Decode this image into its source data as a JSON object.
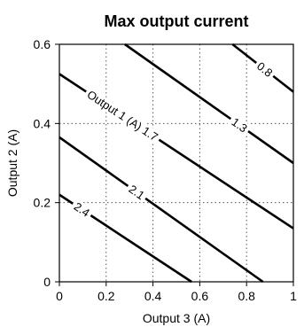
{
  "chart_data": {
    "type": "line",
    "title": "Max output current",
    "xlabel": "Output 3 (A)",
    "ylabel": "Output 2 (A)",
    "xlim": [
      0,
      1
    ],
    "ylim": [
      0,
      0.6
    ],
    "xticks": [
      0,
      0.2,
      0.4,
      0.6,
      0.8,
      1
    ],
    "yticks": [
      0,
      0.2,
      0.4,
      0.6
    ],
    "xtick_labels": [
      "0",
      "0.2",
      "0.4",
      "0.6",
      "0.8",
      "1"
    ],
    "ytick_labels": [
      "0",
      "0.2",
      "0.4",
      "0.6"
    ],
    "grid": true,
    "contour_variable": "Output 1 (A)",
    "series": [
      {
        "name": "0.8",
        "label": "0.8",
        "x": [
          0.74,
          1.0
        ],
        "y": [
          0.6,
          0.48
        ]
      },
      {
        "name": "1.3",
        "label": "1.3",
        "x": [
          0.28,
          1.0
        ],
        "y": [
          0.6,
          0.3
        ]
      },
      {
        "name": "1.7",
        "label": "Output 1 (A) 1.7",
        "x": [
          0.0,
          1.0
        ],
        "y": [
          0.525,
          0.135
        ]
      },
      {
        "name": "2.1",
        "label": "2.1",
        "x": [
          0.0,
          0.87
        ],
        "y": [
          0.365,
          0.0
        ]
      },
      {
        "name": "2.4",
        "label": "2.4",
        "x": [
          0.0,
          0.565
        ],
        "y": [
          0.22,
          0.0
        ]
      }
    ]
  }
}
